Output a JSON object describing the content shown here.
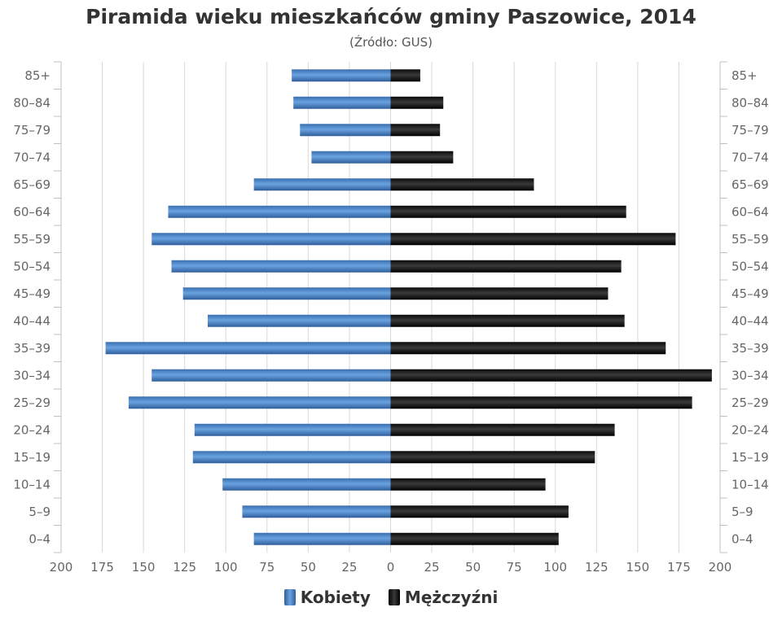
{
  "chart_data": {
    "type": "bar",
    "orientation": "horizontal",
    "layout": "population-pyramid",
    "title": "Piramida wieku mieszkańców gminy Paszowice, 2014",
    "subtitle": "(Źródło: GUS)",
    "categories": [
      "0–4",
      "5–9",
      "10–14",
      "15–19",
      "20–24",
      "25–29",
      "30–34",
      "35–39",
      "40–44",
      "45–49",
      "50–54",
      "55–59",
      "60–64",
      "65–69",
      "70–74",
      "75–79",
      "80–84",
      "85+"
    ],
    "series": [
      {
        "name": "Kobiety",
        "side": "left",
        "color": "#4a82c4",
        "values": [
          83,
          90,
          102,
          120,
          119,
          159,
          145,
          173,
          111,
          126,
          133,
          145,
          135,
          83,
          48,
          55,
          59,
          60
        ]
      },
      {
        "name": "Mężczyźni",
        "side": "right",
        "color": "#1c1c1c",
        "values": [
          102,
          108,
          94,
          124,
          136,
          183,
          195,
          167,
          142,
          132,
          140,
          173,
          143,
          87,
          38,
          30,
          32,
          18
        ]
      }
    ],
    "xlim": [
      -200,
      200
    ],
    "x_ticks": [
      200,
      175,
      150,
      125,
      100,
      75,
      50,
      25,
      0,
      25,
      50,
      75,
      100,
      125,
      150,
      175,
      200
    ],
    "grid": true,
    "legend_position": "bottom-center"
  }
}
